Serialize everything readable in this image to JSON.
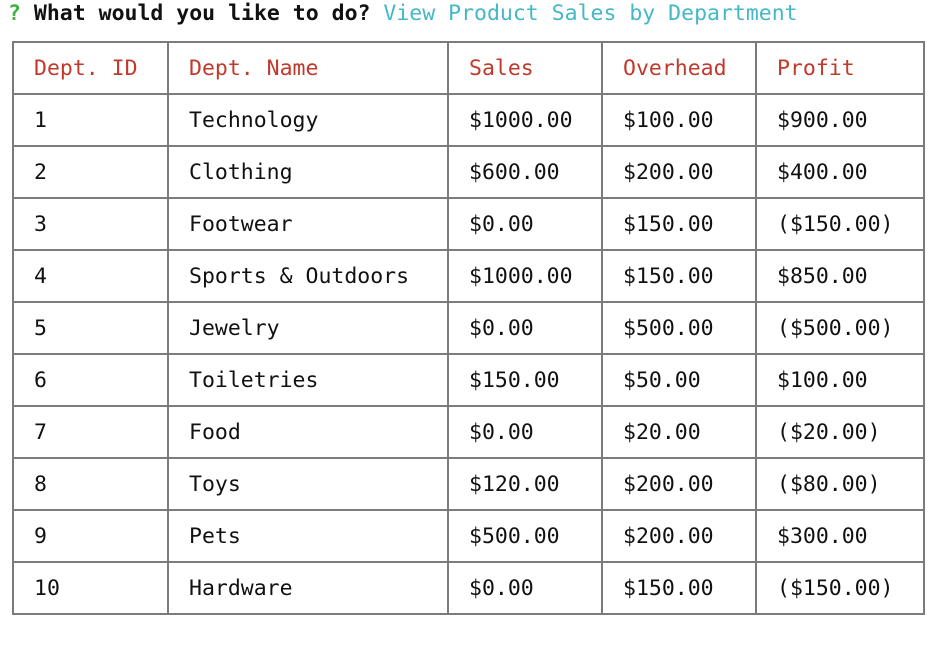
{
  "prompt": {
    "marker": "?",
    "question": "What would you like to do?",
    "answer": "View Product Sales by Department"
  },
  "colors": {
    "prompt_marker": "#3fb23f",
    "answer": "#45b8c6",
    "header_text": "#c0392b",
    "border": "#7b7b7b"
  },
  "table": {
    "headers": [
      "Dept. ID",
      "Dept. Name",
      "Sales",
      "Overhead",
      "Profit"
    ],
    "rows": [
      [
        "1",
        "Technology",
        "$1000.00",
        "$100.00",
        "$900.00"
      ],
      [
        "2",
        "Clothing",
        "$600.00",
        "$200.00",
        "$400.00"
      ],
      [
        "3",
        "Footwear",
        "$0.00",
        "$150.00",
        "($150.00)"
      ],
      [
        "4",
        "Sports & Outdoors",
        "$1000.00",
        "$150.00",
        "$850.00"
      ],
      [
        "5",
        "Jewelry",
        "$0.00",
        "$500.00",
        "($500.00)"
      ],
      [
        "6",
        "Toiletries",
        "$150.00",
        "$50.00",
        "$100.00"
      ],
      [
        "7",
        "Food",
        "$0.00",
        "$20.00",
        "($20.00)"
      ],
      [
        "8",
        "Toys",
        "$120.00",
        "$200.00",
        "($80.00)"
      ],
      [
        "9",
        "Pets",
        "$500.00",
        "$200.00",
        "$300.00"
      ],
      [
        "10",
        "Hardware",
        "$0.00",
        "$150.00",
        "($150.00)"
      ]
    ]
  }
}
